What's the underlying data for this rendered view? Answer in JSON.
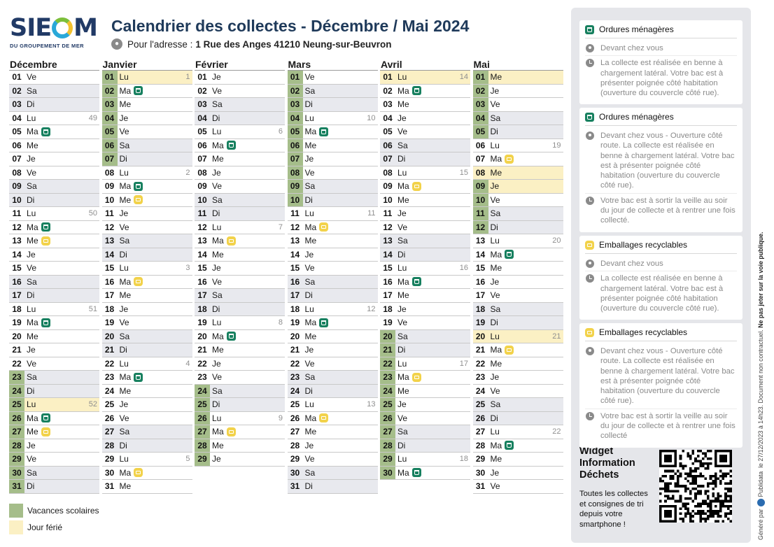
{
  "logo": {
    "text_left": "SIE",
    "text_right": "M",
    "subtitle": "DU GROUPEMENT DE MER"
  },
  "header": {
    "title": "Calendrier des collectes - Décembre / Mai 2024",
    "address_label": "Pour l'adresse :",
    "address_value": "1 Rue des Anges 41210 Neung-sur-Beuvron"
  },
  "months": [
    {
      "name": "Décembre",
      "days": [
        {
          "n": "01",
          "d": "Ve"
        },
        {
          "n": "02",
          "d": "Sa",
          "w": 1
        },
        {
          "n": "03",
          "d": "Di",
          "w": 1
        },
        {
          "n": "04",
          "d": "Lu",
          "wk": "49"
        },
        {
          "n": "05",
          "d": "Ma",
          "i": "om"
        },
        {
          "n": "06",
          "d": "Me"
        },
        {
          "n": "07",
          "d": "Je"
        },
        {
          "n": "08",
          "d": "Ve"
        },
        {
          "n": "09",
          "d": "Sa",
          "w": 1
        },
        {
          "n": "10",
          "d": "Di",
          "w": 1
        },
        {
          "n": "11",
          "d": "Lu",
          "wk": "50"
        },
        {
          "n": "12",
          "d": "Ma",
          "i": "om"
        },
        {
          "n": "13",
          "d": "Me",
          "i": "er"
        },
        {
          "n": "14",
          "d": "Je"
        },
        {
          "n": "15",
          "d": "Ve"
        },
        {
          "n": "16",
          "d": "Sa",
          "w": 1
        },
        {
          "n": "17",
          "d": "Di",
          "w": 1
        },
        {
          "n": "18",
          "d": "Lu",
          "wk": "51"
        },
        {
          "n": "19",
          "d": "Ma",
          "i": "om"
        },
        {
          "n": "20",
          "d": "Me"
        },
        {
          "n": "21",
          "d": "Je"
        },
        {
          "n": "22",
          "d": "Ve"
        },
        {
          "n": "23",
          "d": "Sa",
          "w": 1,
          "v": 1
        },
        {
          "n": "24",
          "d": "Di",
          "w": 1,
          "v": 1
        },
        {
          "n": "25",
          "d": "Lu",
          "wk": "52",
          "h": 1,
          "v": 1
        },
        {
          "n": "26",
          "d": "Ma",
          "i": "om",
          "v": 1
        },
        {
          "n": "27",
          "d": "Me",
          "i": "er",
          "v": 1
        },
        {
          "n": "28",
          "d": "Je",
          "v": 1
        },
        {
          "n": "29",
          "d": "Ve",
          "v": 1
        },
        {
          "n": "30",
          "d": "Sa",
          "w": 1,
          "v": 1
        },
        {
          "n": "31",
          "d": "Di",
          "w": 1,
          "v": 1
        }
      ]
    },
    {
      "name": "Janvier",
      "days": [
        {
          "n": "01",
          "d": "Lu",
          "wk": "1",
          "h": 1,
          "v": 1
        },
        {
          "n": "02",
          "d": "Ma",
          "i": "om",
          "v": 1
        },
        {
          "n": "03",
          "d": "Me",
          "v": 1
        },
        {
          "n": "04",
          "d": "Je",
          "v": 1
        },
        {
          "n": "05",
          "d": "Ve",
          "v": 1
        },
        {
          "n": "06",
          "d": "Sa",
          "w": 1,
          "v": 1
        },
        {
          "n": "07",
          "d": "Di",
          "w": 1,
          "v": 1
        },
        {
          "n": "08",
          "d": "Lu",
          "wk": "2"
        },
        {
          "n": "09",
          "d": "Ma",
          "i": "om"
        },
        {
          "n": "10",
          "d": "Me",
          "i": "er"
        },
        {
          "n": "11",
          "d": "Je"
        },
        {
          "n": "12",
          "d": "Ve"
        },
        {
          "n": "13",
          "d": "Sa",
          "w": 1
        },
        {
          "n": "14",
          "d": "Di",
          "w": 1
        },
        {
          "n": "15",
          "d": "Lu",
          "wk": "3"
        },
        {
          "n": "16",
          "d": "Ma",
          "i": "er"
        },
        {
          "n": "17",
          "d": "Me"
        },
        {
          "n": "18",
          "d": "Je"
        },
        {
          "n": "19",
          "d": "Ve"
        },
        {
          "n": "20",
          "d": "Sa",
          "w": 1
        },
        {
          "n": "21",
          "d": "Di",
          "w": 1
        },
        {
          "n": "22",
          "d": "Lu",
          "wk": "4"
        },
        {
          "n": "23",
          "d": "Ma",
          "i": "om"
        },
        {
          "n": "24",
          "d": "Me"
        },
        {
          "n": "25",
          "d": "Je"
        },
        {
          "n": "26",
          "d": "Ve"
        },
        {
          "n": "27",
          "d": "Sa",
          "w": 1
        },
        {
          "n": "28",
          "d": "Di",
          "w": 1
        },
        {
          "n": "29",
          "d": "Lu",
          "wk": "5"
        },
        {
          "n": "30",
          "d": "Ma",
          "i": "er"
        },
        {
          "n": "31",
          "d": "Me"
        }
      ]
    },
    {
      "name": "Février",
      "days": [
        {
          "n": "01",
          "d": "Je"
        },
        {
          "n": "02",
          "d": "Ve"
        },
        {
          "n": "03",
          "d": "Sa",
          "w": 1
        },
        {
          "n": "04",
          "d": "Di",
          "w": 1
        },
        {
          "n": "05",
          "d": "Lu",
          "wk": "6"
        },
        {
          "n": "06",
          "d": "Ma",
          "i": "om"
        },
        {
          "n": "07",
          "d": "Me"
        },
        {
          "n": "08",
          "d": "Je"
        },
        {
          "n": "09",
          "d": "Ve"
        },
        {
          "n": "10",
          "d": "Sa",
          "w": 1
        },
        {
          "n": "11",
          "d": "Di",
          "w": 1
        },
        {
          "n": "12",
          "d": "Lu",
          "wk": "7"
        },
        {
          "n": "13",
          "d": "Ma",
          "i": "er"
        },
        {
          "n": "14",
          "d": "Me"
        },
        {
          "n": "15",
          "d": "Je"
        },
        {
          "n": "16",
          "d": "Ve"
        },
        {
          "n": "17",
          "d": "Sa",
          "w": 1
        },
        {
          "n": "18",
          "d": "Di",
          "w": 1
        },
        {
          "n": "19",
          "d": "Lu",
          "wk": "8"
        },
        {
          "n": "20",
          "d": "Ma",
          "i": "om"
        },
        {
          "n": "21",
          "d": "Me"
        },
        {
          "n": "22",
          "d": "Je"
        },
        {
          "n": "23",
          "d": "Ve"
        },
        {
          "n": "24",
          "d": "Sa",
          "w": 1,
          "v": 1
        },
        {
          "n": "25",
          "d": "Di",
          "w": 1,
          "v": 1
        },
        {
          "n": "26",
          "d": "Lu",
          "wk": "9",
          "v": 1
        },
        {
          "n": "27",
          "d": "Ma",
          "i": "er",
          "v": 1
        },
        {
          "n": "28",
          "d": "Me",
          "v": 1
        },
        {
          "n": "29",
          "d": "Je",
          "v": 1
        }
      ]
    },
    {
      "name": "Mars",
      "days": [
        {
          "n": "01",
          "d": "Ve",
          "v": 1
        },
        {
          "n": "02",
          "d": "Sa",
          "w": 1,
          "v": 1
        },
        {
          "n": "03",
          "d": "Di",
          "w": 1,
          "v": 1
        },
        {
          "n": "04",
          "d": "Lu",
          "wk": "10",
          "v": 1
        },
        {
          "n": "05",
          "d": "Ma",
          "i": "om",
          "v": 1
        },
        {
          "n": "06",
          "d": "Me",
          "v": 1
        },
        {
          "n": "07",
          "d": "Je",
          "v": 1
        },
        {
          "n": "08",
          "d": "Ve",
          "v": 1
        },
        {
          "n": "09",
          "d": "Sa",
          "w": 1,
          "v": 1
        },
        {
          "n": "10",
          "d": "Di",
          "w": 1,
          "v": 1
        },
        {
          "n": "11",
          "d": "Lu",
          "wk": "11"
        },
        {
          "n": "12",
          "d": "Ma",
          "i": "er"
        },
        {
          "n": "13",
          "d": "Me"
        },
        {
          "n": "14",
          "d": "Je"
        },
        {
          "n": "15",
          "d": "Ve"
        },
        {
          "n": "16",
          "d": "Sa",
          "w": 1
        },
        {
          "n": "17",
          "d": "Di",
          "w": 1
        },
        {
          "n": "18",
          "d": "Lu",
          "wk": "12"
        },
        {
          "n": "19",
          "d": "Ma",
          "i": "om"
        },
        {
          "n": "20",
          "d": "Me"
        },
        {
          "n": "21",
          "d": "Je"
        },
        {
          "n": "22",
          "d": "Ve"
        },
        {
          "n": "23",
          "d": "Sa",
          "w": 1
        },
        {
          "n": "24",
          "d": "Di",
          "w": 1
        },
        {
          "n": "25",
          "d": "Lu",
          "wk": "13"
        },
        {
          "n": "26",
          "d": "Ma",
          "i": "er"
        },
        {
          "n": "27",
          "d": "Me"
        },
        {
          "n": "28",
          "d": "Je"
        },
        {
          "n": "29",
          "d": "Ve"
        },
        {
          "n": "30",
          "d": "Sa",
          "w": 1
        },
        {
          "n": "31",
          "d": "Di",
          "w": 1
        }
      ]
    },
    {
      "name": "Avril",
      "days": [
        {
          "n": "01",
          "d": "Lu",
          "wk": "14",
          "h": 1
        },
        {
          "n": "02",
          "d": "Ma",
          "i": "om"
        },
        {
          "n": "03",
          "d": "Me"
        },
        {
          "n": "04",
          "d": "Je"
        },
        {
          "n": "05",
          "d": "Ve"
        },
        {
          "n": "06",
          "d": "Sa",
          "w": 1
        },
        {
          "n": "07",
          "d": "Di",
          "w": 1
        },
        {
          "n": "08",
          "d": "Lu",
          "wk": "15"
        },
        {
          "n": "09",
          "d": "Ma",
          "i": "er"
        },
        {
          "n": "10",
          "d": "Me"
        },
        {
          "n": "11",
          "d": "Je"
        },
        {
          "n": "12",
          "d": "Ve"
        },
        {
          "n": "13",
          "d": "Sa",
          "w": 1
        },
        {
          "n": "14",
          "d": "Di",
          "w": 1
        },
        {
          "n": "15",
          "d": "Lu",
          "wk": "16"
        },
        {
          "n": "16",
          "d": "Ma",
          "i": "om"
        },
        {
          "n": "17",
          "d": "Me"
        },
        {
          "n": "18",
          "d": "Je"
        },
        {
          "n": "19",
          "d": "Ve"
        },
        {
          "n": "20",
          "d": "Sa",
          "w": 1,
          "v": 1
        },
        {
          "n": "21",
          "d": "Di",
          "w": 1,
          "v": 1
        },
        {
          "n": "22",
          "d": "Lu",
          "wk": "17",
          "v": 1
        },
        {
          "n": "23",
          "d": "Ma",
          "i": "er",
          "v": 1
        },
        {
          "n": "24",
          "d": "Me",
          "v": 1
        },
        {
          "n": "25",
          "d": "Je",
          "v": 1
        },
        {
          "n": "26",
          "d": "Ve",
          "v": 1
        },
        {
          "n": "27",
          "d": "Sa",
          "w": 1,
          "v": 1
        },
        {
          "n": "28",
          "d": "Di",
          "w": 1,
          "v": 1
        },
        {
          "n": "29",
          "d": "Lu",
          "wk": "18",
          "v": 1
        },
        {
          "n": "30",
          "d": "Ma",
          "i": "om",
          "v": 1
        }
      ]
    },
    {
      "name": "Mai",
      "days": [
        {
          "n": "01",
          "d": "Me",
          "h": 1,
          "v": 1
        },
        {
          "n": "02",
          "d": "Je",
          "v": 1
        },
        {
          "n": "03",
          "d": "Ve",
          "v": 1
        },
        {
          "n": "04",
          "d": "Sa",
          "w": 1,
          "v": 1
        },
        {
          "n": "05",
          "d": "Di",
          "w": 1,
          "v": 1
        },
        {
          "n": "06",
          "d": "Lu",
          "wk": "19"
        },
        {
          "n": "07",
          "d": "Ma",
          "i": "er"
        },
        {
          "n": "08",
          "d": "Me",
          "h": 1
        },
        {
          "n": "09",
          "d": "Je",
          "h": 1,
          "v": 1
        },
        {
          "n": "10",
          "d": "Ve",
          "v": 1
        },
        {
          "n": "11",
          "d": "Sa",
          "w": 1,
          "v": 1
        },
        {
          "n": "12",
          "d": "Di",
          "w": 1,
          "v": 1
        },
        {
          "n": "13",
          "d": "Lu",
          "wk": "20"
        },
        {
          "n": "14",
          "d": "Ma",
          "i": "om"
        },
        {
          "n": "15",
          "d": "Me"
        },
        {
          "n": "16",
          "d": "Je"
        },
        {
          "n": "17",
          "d": "Ve"
        },
        {
          "n": "18",
          "d": "Sa",
          "w": 1
        },
        {
          "n": "19",
          "d": "Di",
          "w": 1
        },
        {
          "n": "20",
          "d": "Lu",
          "wk": "21",
          "h": 1
        },
        {
          "n": "21",
          "d": "Ma",
          "i": "er"
        },
        {
          "n": "22",
          "d": "Me"
        },
        {
          "n": "23",
          "d": "Je"
        },
        {
          "n": "24",
          "d": "Ve"
        },
        {
          "n": "25",
          "d": "Sa",
          "w": 1
        },
        {
          "n": "26",
          "d": "Di",
          "w": 1
        },
        {
          "n": "27",
          "d": "Lu",
          "wk": "22"
        },
        {
          "n": "28",
          "d": "Ma",
          "i": "om"
        },
        {
          "n": "29",
          "d": "Me"
        },
        {
          "n": "30",
          "d": "Je"
        },
        {
          "n": "31",
          "d": "Ve"
        }
      ]
    }
  ],
  "legend": {
    "vacation": "Vacances scolaires",
    "holiday": "Jour férié"
  },
  "cards": [
    {
      "icon": "om",
      "title": "Ordures ménagères",
      "rows": [
        {
          "icon": "pin",
          "text": "Devant chez vous"
        },
        {
          "icon": "clock",
          "text": "La collecte est réalisée en benne à chargement latéral. Votre bac est à présenter poignée côté habitation (ouverture du couvercle côté rue)."
        }
      ]
    },
    {
      "icon": "om",
      "title": "Ordures ménagères",
      "rows": [
        {
          "icon": "pin",
          "text": "Devant chez vous - Ouverture côté route. La collecte est réalisée en benne à chargement latéral. Votre bac est à présenter poignée côté habitation (ouverture du couvercle côté rue)."
        },
        {
          "icon": "clock",
          "text": "Votre bac est à sortir la veille au soir du jour de collecte et à rentrer une fois collecté."
        }
      ]
    },
    {
      "icon": "er",
      "title": "Emballages recyclables",
      "rows": [
        {
          "icon": "pin",
          "text": "Devant chez vous"
        },
        {
          "icon": "clock",
          "text": "La collecte est réalisée en benne à chargement latéral. Votre bac est à présenter poignée côté habitation (ouverture du couvercle côté rue)."
        }
      ]
    },
    {
      "icon": "er",
      "title": "Emballages recyclables",
      "rows": [
        {
          "icon": "pin",
          "text": "Devant chez vous - Ouverture côté route. La collecte est réalisée en benne à chargement latéral. Votre bac est à présenter poignée côté habitation (ouverture du couvercle côté rue)."
        },
        {
          "icon": "clock",
          "text": "Votre bac est à sortir la veille au soir du jour de collecte et à rentrer une fois collecté"
        }
      ]
    }
  ],
  "widget": {
    "title_lines": [
      "Widget",
      "Information",
      "Déchets"
    ],
    "text": "Toutes les collectes et consignes de tri depuis votre smartphone !"
  },
  "side_note": {
    "generated_by": "Généré par",
    "brand": "Publidata",
    "date": "le 27/12/2023 à 14h23. Document non contractuel.",
    "bold": "Ne pas jeter sur la voie publique."
  },
  "colors": {
    "title": "#1f3a5a",
    "vacation": "#a5bd8a",
    "holiday": "#fbf0c4",
    "weekend": "#e8e9ee",
    "om_icon": "#17805f",
    "er_icon": "#f2d24a",
    "panel": "#e5e6ea"
  },
  "icons": {
    "om": "trash-bin-icon",
    "er": "recycling-bag-icon",
    "pin": "location-pin-icon",
    "clock": "clock-icon"
  }
}
